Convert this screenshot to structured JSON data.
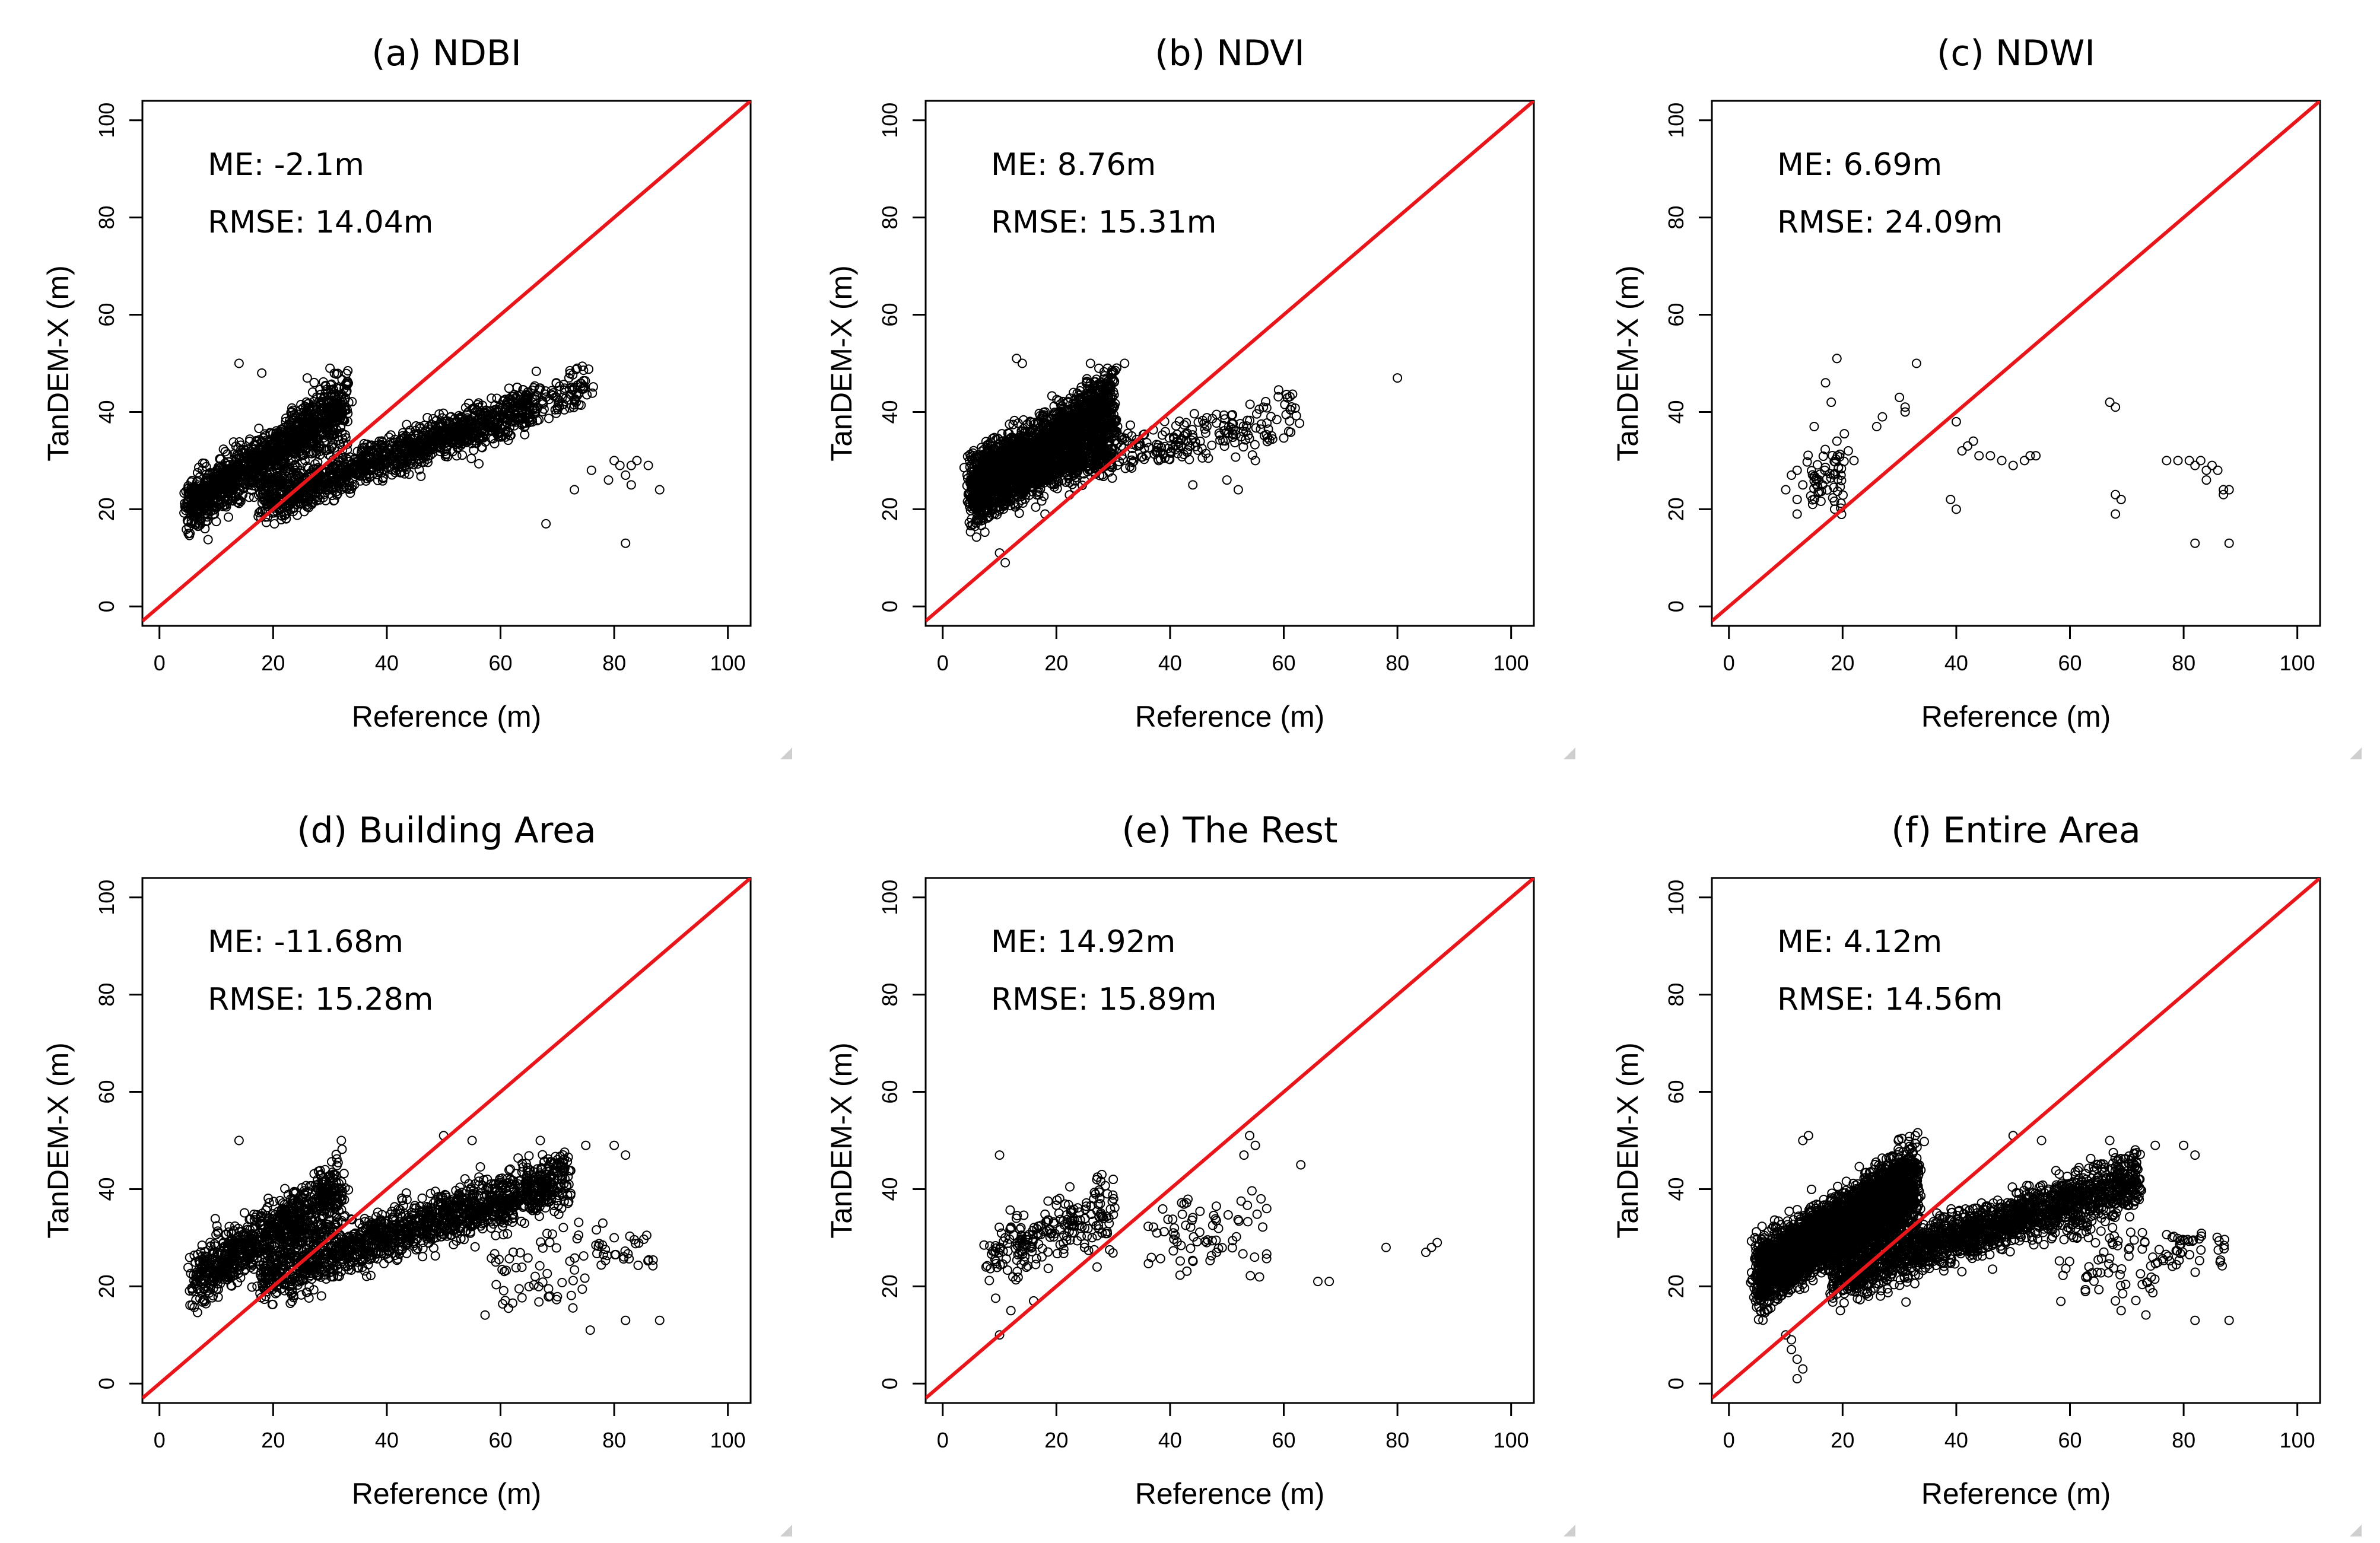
{
  "figure": {
    "colors": {
      "background": "#ffffff",
      "points": "#000000",
      "one_to_one_line": "#e8161b",
      "axes": "#000000"
    }
  },
  "chart_data": [
    {
      "type": "scatter",
      "title": "(a) NDBI",
      "xlabel": "Reference (m)",
      "ylabel": "TanDEM-X (m)",
      "xlim": [
        -3,
        104
      ],
      "ylim": [
        -4,
        104
      ],
      "xticks": [
        "0",
        "20",
        "40",
        "60",
        "80",
        "100"
      ],
      "yticks": [
        "0",
        "20",
        "40",
        "60",
        "80",
        "100"
      ],
      "annotations": [
        "ME: -2.1m",
        "RMSE: 14.04m"
      ],
      "reference_line": "1:1",
      "clusters": [
        {
          "x_range": [
            5,
            33
          ],
          "y_start": [
            17,
            24
          ],
          "y_end": [
            36,
            47
          ],
          "spread": 4,
          "count": 1300
        },
        {
          "x_range": [
            18,
            66
          ],
          "y_start": [
            18,
            25
          ],
          "y_end": [
            38,
            45
          ],
          "spread": 3,
          "count": 1300
        },
        {
          "x_range": [
            64,
            76
          ],
          "y_start": [
            38,
            44
          ],
          "y_end": [
            42,
            50
          ],
          "spread": 3,
          "count": 90
        }
      ],
      "points": [
        [
          14,
          50
        ],
        [
          68,
          17
        ],
        [
          82,
          13
        ],
        [
          73,
          24
        ],
        [
          76,
          28
        ],
        [
          79,
          26
        ],
        [
          80,
          30
        ],
        [
          81,
          29
        ],
        [
          82,
          27
        ],
        [
          83,
          29
        ],
        [
          84,
          30
        ],
        [
          86,
          29
        ],
        [
          88,
          24
        ],
        [
          83,
          25
        ],
        [
          18,
          48
        ],
        [
          26,
          47
        ],
        [
          30,
          49
        ],
        [
          35,
          30
        ],
        [
          12,
          22
        ],
        [
          8,
          16
        ]
      ]
    },
    {
      "type": "scatter",
      "title": "(b) NDVI",
      "xlabel": "Reference (m)",
      "ylabel": "TanDEM-X (m)",
      "xlim": [
        -3,
        104
      ],
      "ylim": [
        -4,
        104
      ],
      "xticks": [
        "0",
        "20",
        "40",
        "60",
        "80",
        "100"
      ],
      "yticks": [
        "0",
        "20",
        "40",
        "60",
        "80",
        "100"
      ],
      "annotations": [
        "ME: 8.76m",
        "RMSE: 15.31m"
      ],
      "reference_line": "1:1",
      "clusters": [
        {
          "x_range": [
            5,
            30
          ],
          "y_start": [
            18,
            30
          ],
          "y_end": [
            30,
            48
          ],
          "spread": 4,
          "count": 2600
        },
        {
          "x_range": [
            30,
            62
          ],
          "y_start": [
            27,
            34
          ],
          "y_end": [
            35,
            44
          ],
          "spread": 3,
          "count": 200
        }
      ],
      "points": [
        [
          80,
          47
        ],
        [
          11,
          9
        ],
        [
          10,
          11
        ],
        [
          13,
          51
        ],
        [
          14,
          50
        ],
        [
          26,
          50
        ],
        [
          29,
          49
        ],
        [
          32,
          50
        ],
        [
          18,
          19
        ],
        [
          50,
          26
        ],
        [
          52,
          24
        ],
        [
          55,
          30
        ],
        [
          38,
          30
        ],
        [
          44,
          25
        ]
      ]
    },
    {
      "type": "scatter",
      "title": "(c) NDWI",
      "xlabel": "Reference (m)",
      "ylabel": "TanDEM-X (m)",
      "xlim": [
        -3,
        104
      ],
      "ylim": [
        -4,
        104
      ],
      "xticks": [
        "0",
        "20",
        "40",
        "60",
        "80",
        "100"
      ],
      "yticks": [
        "0",
        "20",
        "40",
        "60",
        "80",
        "100"
      ],
      "annotations": [
        "ME: 6.69m",
        "RMSE: 24.09m"
      ],
      "reference_line": "1:1",
      "clusters": [
        {
          "x_range": [
            14,
            20
          ],
          "y_start": [
            20,
            34
          ],
          "y_end": [
            20,
            34
          ],
          "spread": 3,
          "count": 60
        }
      ],
      "points": [
        [
          10,
          24
        ],
        [
          11,
          27
        ],
        [
          12,
          28
        ],
        [
          12,
          22
        ],
        [
          13,
          25
        ],
        [
          12,
          19
        ],
        [
          17,
          46
        ],
        [
          19,
          51
        ],
        [
          18,
          42
        ],
        [
          15,
          37
        ],
        [
          19,
          34
        ],
        [
          21,
          32
        ],
        [
          22,
          30
        ],
        [
          26,
          37
        ],
        [
          27,
          39
        ],
        [
          30,
          43
        ],
        [
          31,
          41
        ],
        [
          31,
          40
        ],
        [
          33,
          50
        ],
        [
          40,
          38
        ],
        [
          41,
          32
        ],
        [
          42,
          33
        ],
        [
          43,
          34
        ],
        [
          44,
          31
        ],
        [
          46,
          31
        ],
        [
          48,
          30
        ],
        [
          50,
          29
        ],
        [
          52,
          30
        ],
        [
          53,
          31
        ],
        [
          54,
          31
        ],
        [
          39,
          22
        ],
        [
          40,
          20
        ],
        [
          67,
          42
        ],
        [
          68,
          41
        ],
        [
          68,
          23
        ],
        [
          69,
          22
        ],
        [
          68,
          19
        ],
        [
          77,
          30
        ],
        [
          79,
          30
        ],
        [
          81,
          30
        ],
        [
          82,
          29
        ],
        [
          83,
          30
        ],
        [
          84,
          28
        ],
        [
          84,
          26
        ],
        [
          85,
          29
        ],
        [
          86,
          28
        ],
        [
          87,
          24
        ],
        [
          88,
          24
        ],
        [
          87,
          23
        ],
        [
          82,
          13
        ],
        [
          88,
          13
        ]
      ]
    },
    {
      "type": "scatter",
      "title": "(d) Building Area",
      "xlabel": "Reference (m)",
      "ylabel": "TanDEM-X (m)",
      "xlim": [
        -3,
        104
      ],
      "ylim": [
        -4,
        104
      ],
      "xticks": [
        "0",
        "20",
        "40",
        "60",
        "80",
        "100"
      ],
      "yticks": [
        "0",
        "20",
        "40",
        "60",
        "80",
        "100"
      ],
      "annotations": [
        "ME: -11.68m",
        "RMSE: 15.28m"
      ],
      "reference_line": "1:1",
      "clusters": [
        {
          "x_range": [
            6,
            32
          ],
          "y_start": [
            17,
            26
          ],
          "y_end": [
            34,
            45
          ],
          "spread": 4,
          "count": 900
        },
        {
          "x_range": [
            18,
            72
          ],
          "y_start": [
            18,
            26
          ],
          "y_end": [
            38,
            46
          ],
          "spread": 4,
          "count": 1500
        },
        {
          "x_range": [
            58,
            76
          ],
          "y_start": [
            14,
            34
          ],
          "y_end": [
            14,
            34
          ],
          "spread": 4,
          "count": 60
        },
        {
          "x_range": [
            76,
            88
          ],
          "y_start": [
            24,
            31
          ],
          "y_end": [
            24,
            31
          ],
          "spread": 2,
          "count": 30
        }
      ],
      "points": [
        [
          14,
          50
        ],
        [
          32,
          50
        ],
        [
          50,
          51
        ],
        [
          55,
          50
        ],
        [
          67,
          50
        ],
        [
          75,
          49
        ],
        [
          80,
          49
        ],
        [
          82,
          47
        ],
        [
          82,
          13
        ],
        [
          88,
          13
        ],
        [
          78,
          33
        ],
        [
          80,
          30
        ]
      ]
    },
    {
      "type": "scatter",
      "title": "(e) The Rest",
      "xlabel": "Reference (m)",
      "ylabel": "TanDEM-X (m)",
      "xlim": [
        -3,
        104
      ],
      "ylim": [
        -4,
        104
      ],
      "xticks": [
        "0",
        "20",
        "40",
        "60",
        "80",
        "100"
      ],
      "yticks": [
        "0",
        "20",
        "40",
        "60",
        "80",
        "100"
      ],
      "annotations": [
        "ME: 14.92m",
        "RMSE: 15.89m"
      ],
      "reference_line": "1:1",
      "clusters": [
        {
          "x_range": [
            8,
            30
          ],
          "y_start": [
            22,
            30
          ],
          "y_end": [
            30,
            42
          ],
          "spread": 5,
          "count": 220
        },
        {
          "x_range": [
            35,
            57
          ],
          "y_start": [
            22,
            38
          ],
          "y_end": [
            22,
            38
          ],
          "spread": 4,
          "count": 70
        }
      ],
      "points": [
        [
          10,
          47
        ],
        [
          10,
          10
        ],
        [
          12,
          15
        ],
        [
          16,
          17
        ],
        [
          54,
          51
        ],
        [
          55,
          49
        ],
        [
          53,
          47
        ],
        [
          63,
          45
        ],
        [
          66,
          21
        ],
        [
          68,
          21
        ],
        [
          78,
          28
        ],
        [
          85,
          27
        ],
        [
          86,
          28
        ],
        [
          87,
          29
        ],
        [
          57,
          36
        ],
        [
          56,
          38
        ],
        [
          28,
          43
        ],
        [
          30,
          42
        ]
      ]
    },
    {
      "type": "scatter",
      "title": "(f) Entire Area",
      "xlabel": "Reference (m)",
      "ylabel": "TanDEM-X (m)",
      "xlim": [
        -3,
        104
      ],
      "ylim": [
        -4,
        104
      ],
      "xticks": [
        "0",
        "20",
        "40",
        "60",
        "80",
        "100"
      ],
      "yticks": [
        "0",
        "20",
        "40",
        "60",
        "80",
        "100"
      ],
      "annotations": [
        "ME: 4.12m",
        "RMSE: 14.56m"
      ],
      "reference_line": "1:1",
      "clusters": [
        {
          "x_range": [
            5,
            33
          ],
          "y_start": [
            17,
            28
          ],
          "y_end": [
            34,
            48
          ],
          "spread": 4,
          "count": 3400
        },
        {
          "x_range": [
            18,
            72
          ],
          "y_start": [
            18,
            26
          ],
          "y_end": [
            38,
            46
          ],
          "spread": 4,
          "count": 1900
        },
        {
          "x_range": [
            58,
            76
          ],
          "y_start": [
            16,
            34
          ],
          "y_end": [
            16,
            34
          ],
          "spread": 4,
          "count": 70
        },
        {
          "x_range": [
            76,
            88
          ],
          "y_start": [
            24,
            31
          ],
          "y_end": [
            24,
            31
          ],
          "spread": 2,
          "count": 40
        }
      ],
      "points": [
        [
          11,
          7
        ],
        [
          12,
          5
        ],
        [
          13,
          3
        ],
        [
          12,
          1
        ],
        [
          11,
          9
        ],
        [
          10,
          10
        ],
        [
          14,
          51
        ],
        [
          13,
          50
        ],
        [
          50,
          51
        ],
        [
          55,
          50
        ],
        [
          67,
          50
        ],
        [
          75,
          49
        ],
        [
          80,
          49
        ],
        [
          82,
          47
        ],
        [
          82,
          13
        ],
        [
          88,
          13
        ],
        [
          68,
          17
        ],
        [
          69,
          15
        ]
      ]
    }
  ]
}
